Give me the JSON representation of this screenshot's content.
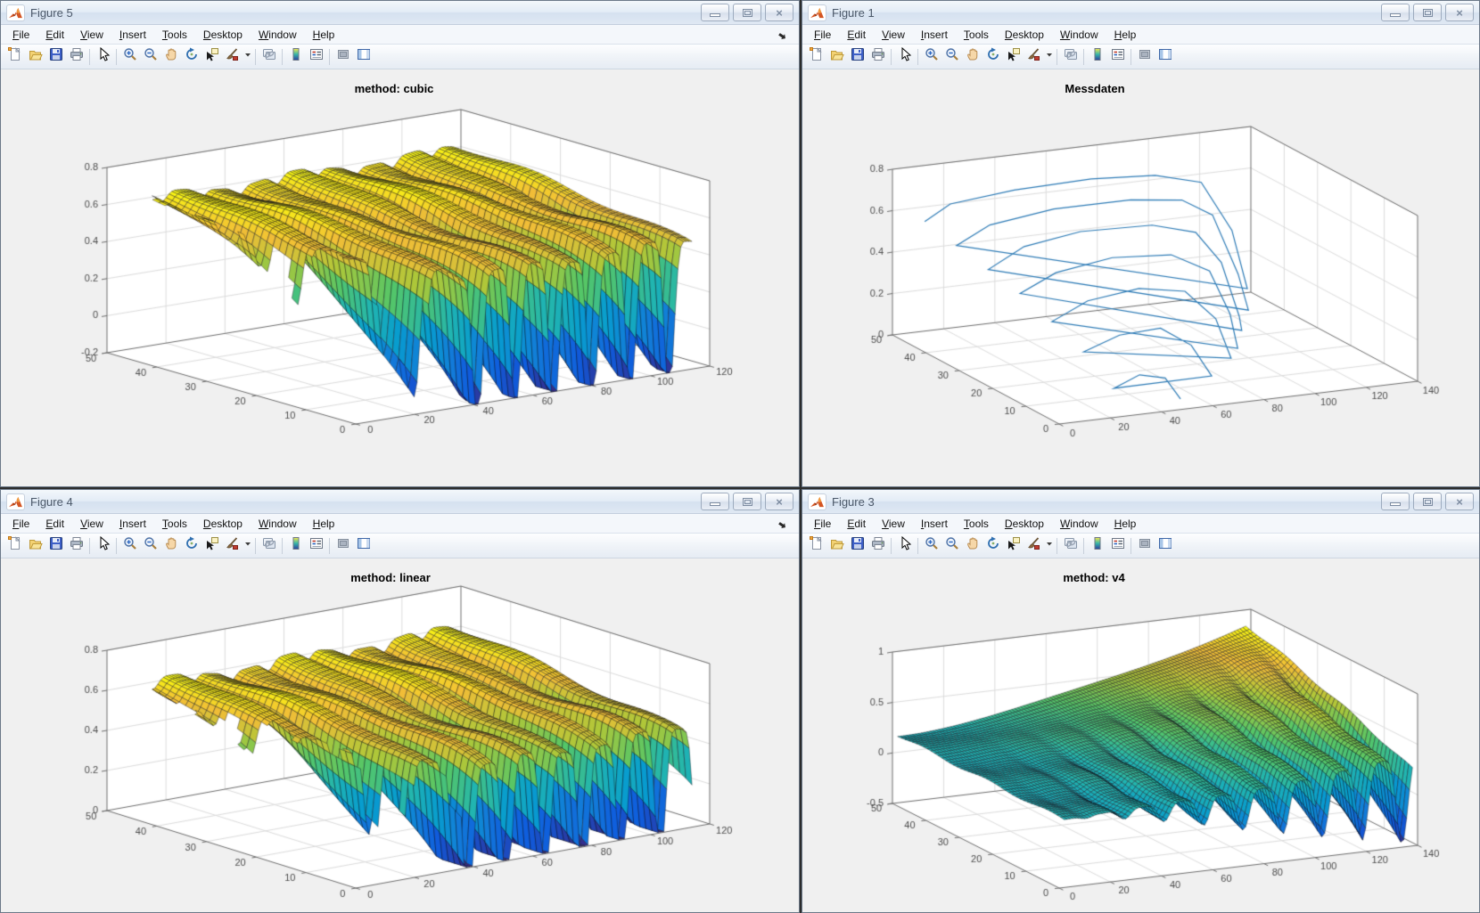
{
  "menu_items": [
    "File",
    "Edit",
    "View",
    "Insert",
    "Tools",
    "Desktop",
    "Window",
    "Help"
  ],
  "toolbar_items": [
    "new-figure",
    "open-file",
    "save-figure",
    "print-figure",
    "separator",
    "edit-plot-pointer",
    "separator",
    "zoom-in",
    "zoom-out",
    "pan",
    "rotate-3d",
    "data-cursor",
    "brush",
    "brush-dropdown",
    "separator",
    "link-plots",
    "separator",
    "insert-colorbar",
    "insert-legend",
    "separator",
    "hide-plot-tools",
    "show-plot-tools"
  ],
  "window_controls": [
    "minimize",
    "restore",
    "close"
  ],
  "windows": [
    {
      "title": "Figure 5",
      "menu_overflow": true
    },
    {
      "title": "Figure 1",
      "menu_overflow": false
    },
    {
      "title": "Figure 4",
      "menu_overflow": true
    },
    {
      "title": "Figure 3",
      "menu_overflow": false
    }
  ],
  "chart_data": [
    {
      "figure": "Figure 5",
      "type": "surface-3d",
      "title": "method: cubic",
      "colormap": "parula",
      "xlim": [
        0,
        120
      ],
      "ylim": [
        0,
        50
      ],
      "zlim": [
        -0.2,
        0.8
      ],
      "x_ticks": [
        0,
        20,
        40,
        60,
        80,
        100,
        120
      ],
      "y_ticks": [
        0,
        10,
        20,
        30,
        40,
        50
      ],
      "z_ticks": [
        -0.2,
        0,
        0.2,
        0.4,
        0.6,
        0.8
      ],
      "grid": true,
      "surface": {
        "model": "griddata-cubic",
        "x_domain": [
          10,
          114
        ],
        "y_domain": [
          0,
          48
        ],
        "ripple_period": 13,
        "ripple_phase": 12,
        "ripple_sharpness": 3,
        "spike_amplitude": 0.78,
        "spike_decay": 1.9,
        "plateau_base": 0.5,
        "plateau_rise": 0.13,
        "z_clip": -0.2,
        "front_edge_cut": 24,
        "grid_n": [
          110,
          40
        ]
      }
    },
    {
      "figure": "Figure 1",
      "type": "line-3d",
      "title": "Messdaten",
      "line_color": "#2d7bb6",
      "xlim": [
        0,
        140
      ],
      "ylim": [
        0,
        50
      ],
      "zlim": [
        0,
        0.8
      ],
      "x_ticks": [
        0,
        20,
        40,
        60,
        80,
        100,
        120,
        140
      ],
      "y_ticks": [
        0,
        10,
        20,
        30,
        40,
        50
      ],
      "z_ticks": [
        0,
        0.2,
        0.4,
        0.6,
        0.8
      ],
      "grid": true,
      "points": [
        [
          10,
          48,
          0.55
        ],
        [
          20,
          48,
          0.62
        ],
        [
          45,
          48,
          0.65
        ],
        [
          75,
          48,
          0.66
        ],
        [
          100,
          48,
          0.64
        ],
        [
          118,
          48,
          0.58
        ],
        [
          130,
          48,
          0.33
        ],
        [
          136,
          48,
          0.04
        ],
        [
          12,
          40,
          0.5
        ],
        [
          25,
          40,
          0.58
        ],
        [
          50,
          40,
          0.62
        ],
        [
          80,
          40,
          0.62
        ],
        [
          100,
          40,
          0.59
        ],
        [
          112,
          40,
          0.5
        ],
        [
          122,
          40,
          0.2
        ],
        [
          126,
          40,
          0.02
        ],
        [
          14,
          32,
          0.45
        ],
        [
          28,
          32,
          0.54
        ],
        [
          50,
          32,
          0.58
        ],
        [
          78,
          32,
          0.57
        ],
        [
          95,
          32,
          0.51
        ],
        [
          105,
          32,
          0.35
        ],
        [
          112,
          32,
          0.08
        ],
        [
          113,
          32,
          0.01
        ],
        [
          16,
          24,
          0.4
        ],
        [
          30,
          24,
          0.48
        ],
        [
          52,
          24,
          0.52
        ],
        [
          75,
          24,
          0.5
        ],
        [
          90,
          24,
          0.4
        ],
        [
          98,
          24,
          0.18
        ],
        [
          101,
          24,
          0.01
        ],
        [
          18,
          16,
          0.33
        ],
        [
          32,
          16,
          0.41
        ],
        [
          52,
          16,
          0.44
        ],
        [
          70,
          16,
          0.4
        ],
        [
          82,
          16,
          0.25
        ],
        [
          88,
          16,
          0.05
        ],
        [
          20,
          8,
          0.25
        ],
        [
          34,
          8,
          0.31
        ],
        [
          50,
          8,
          0.32
        ],
        [
          62,
          8,
          0.22
        ],
        [
          70,
          8,
          0.06
        ],
        [
          24,
          2,
          0.12
        ],
        [
          34,
          2,
          0.17
        ],
        [
          44,
          2,
          0.14
        ],
        [
          50,
          2,
          0.03
        ]
      ]
    },
    {
      "figure": "Figure 4",
      "type": "surface-3d",
      "title": "method: linear",
      "colormap": "parula",
      "xlim": [
        0,
        120
      ],
      "ylim": [
        0,
        50
      ],
      "zlim": [
        0,
        0.8
      ],
      "x_ticks": [
        0,
        20,
        40,
        60,
        80,
        100,
        120
      ],
      "y_ticks": [
        0,
        10,
        20,
        30,
        40,
        50
      ],
      "z_ticks": [
        0,
        0.2,
        0.4,
        0.6,
        0.8
      ],
      "grid": true,
      "surface": {
        "model": "griddata-linear",
        "x_domain": [
          10,
          114
        ],
        "y_domain": [
          0,
          48
        ],
        "ripple_period": 13,
        "ripple_phase": 9,
        "ripple_sharpness": 3,
        "spike_amplitude": 0.66,
        "spike_decay": 1.9,
        "plateau_base": 0.5,
        "plateau_rise": 0.13,
        "z_clip": 0.004,
        "front_edge_cut": 24,
        "grid_n": [
          110,
          40
        ]
      }
    },
    {
      "figure": "Figure 3",
      "type": "surface-3d",
      "title": "method: v4",
      "colormap": "parula",
      "xlim": [
        0,
        140
      ],
      "ylim": [
        0,
        50
      ],
      "zlim": [
        -0.5,
        1
      ],
      "x_ticks": [
        0,
        20,
        40,
        60,
        80,
        100,
        120,
        140
      ],
      "y_ticks": [
        0,
        10,
        20,
        30,
        40,
        50
      ],
      "z_ticks": [
        -0.5,
        0,
        0.5,
        1
      ],
      "grid": true,
      "surface": {
        "model": "griddata-v4",
        "x_domain": [
          2,
          138
        ],
        "y_domain": [
          0,
          50
        ],
        "base_min": 0.17,
        "base_gain": 0.68,
        "ripple_period": 15.5,
        "ripple_phase": 6,
        "ripple_sharpness": 2.4,
        "spike_amplitude": 0.9,
        "spike_decay": 1.9,
        "z_clip": -0.5,
        "grid_n": [
          120,
          46
        ]
      }
    }
  ]
}
